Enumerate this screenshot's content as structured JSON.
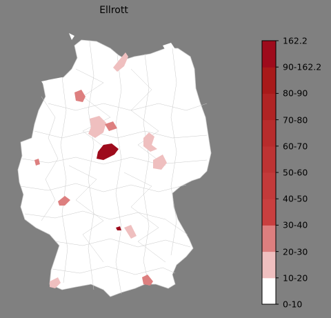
{
  "title": "Ellrott",
  "legend": {
    "max_label": "162.2",
    "bins": [
      {
        "label": "0-10",
        "color": "#ffffff"
      },
      {
        "label": "10-20",
        "color": "#efbfbf"
      },
      {
        "label": "20-30",
        "color": "#dd7f7f"
      },
      {
        "label": "30-40",
        "color": "#c93f3f"
      },
      {
        "label": "40-50",
        "color": "#c33a3a"
      },
      {
        "label": "50-60",
        "color": "#bd3333"
      },
      {
        "label": "60-70",
        "color": "#b72c2c"
      },
      {
        "label": "70-80",
        "color": "#b02424"
      },
      {
        "label": "80-90",
        "color": "#a81a1a"
      },
      {
        "label": "90-162.2",
        "color": "#9e0b1c"
      }
    ]
  },
  "colors": {
    "background": "#808080",
    "land": "#ffffff",
    "border": "#bdbdbd"
  },
  "highlighted_regions": [
    {
      "id": "region-north-coast",
      "bin": "10-20"
    },
    {
      "id": "region-north-west",
      "bin": "20-30"
    },
    {
      "id": "region-lower-saxony",
      "bin": "10-20"
    },
    {
      "id": "region-lower-saxony-east",
      "bin": "20-30"
    },
    {
      "id": "region-hesse-north",
      "bin": "90-162.2"
    },
    {
      "id": "region-saxony-anhalt",
      "bin": "10-20"
    },
    {
      "id": "region-saxony",
      "bin": "10-20"
    },
    {
      "id": "region-nrw-west",
      "bin": "20-30"
    },
    {
      "id": "region-rhineland",
      "bin": "20-30"
    },
    {
      "id": "region-bavaria-center",
      "bin": "90-162.2"
    },
    {
      "id": "region-bavaria-east",
      "bin": "10-20"
    },
    {
      "id": "region-bodensee",
      "bin": "10-20"
    },
    {
      "id": "region-upper-bavaria",
      "bin": "20-30"
    }
  ]
}
